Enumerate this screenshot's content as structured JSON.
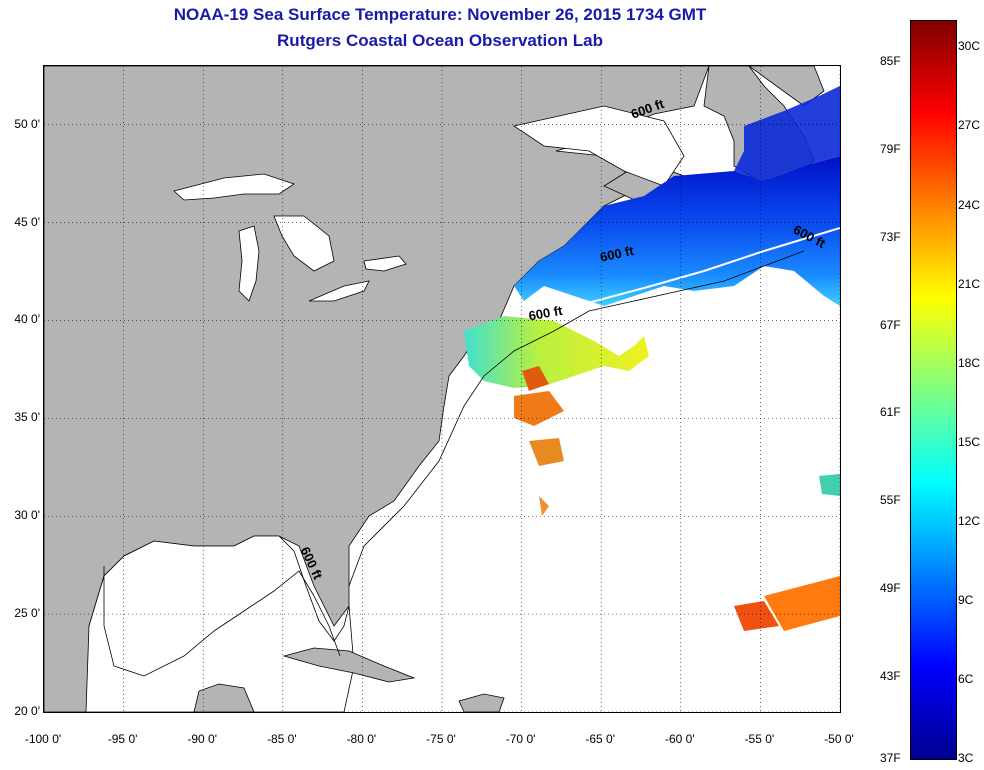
{
  "title_line1": "NOAA-19 Sea Surface Temperature:  November 26, 2015 1734 GMT",
  "title_line2": "Rutgers Coastal Ocean Observation Lab",
  "map": {
    "lon_range": [
      -100,
      -50
    ],
    "lat_range": [
      20,
      53
    ],
    "lon_ticks": [
      -100,
      -95,
      -90,
      -85,
      -80,
      -75,
      -70,
      -65,
      -60,
      -55,
      -50
    ],
    "lon_tick_labels": [
      "-100 0'",
      "-95 0'",
      "-90 0'",
      "-85 0'",
      "-80 0'",
      "-75 0'",
      "-70 0'",
      "-65 0'",
      "-60 0'",
      "-55 0'",
      "-50 0'"
    ],
    "lat_ticks": [
      20,
      25,
      30,
      35,
      40,
      45,
      50
    ],
    "lat_tick_labels": [
      "20 0'",
      "25 0'",
      "30 0'",
      "35 0'",
      "40 0'",
      "45 0'",
      "50 0'"
    ],
    "land_color": "#b4b4b4",
    "water_color": "#ffffff",
    "contour_label": "600 ft",
    "contour_labels": [
      {
        "text": "600 ft",
        "lon": -63,
        "lat": 50.3,
        "angle": -20
      },
      {
        "text": "600 ft",
        "lon": -53,
        "lat": 44.5,
        "angle": 28
      },
      {
        "text": "600 ft",
        "lon": -65,
        "lat": 43.0,
        "angle": -12
      },
      {
        "text": "600 ft",
        "lon": -69.5,
        "lat": 40.0,
        "angle": -10
      },
      {
        "text": "600 ft",
        "lon": -83.9,
        "lat": 28.3,
        "angle": 65
      }
    ]
  },
  "colorbar": {
    "colors": [
      "#00008f",
      "#0000ff",
      "#0080ff",
      "#00ffff",
      "#80ff80",
      "#ffff00",
      "#ff8000",
      "#ff0000",
      "#800000"
    ],
    "fahrenheit_labels": [
      {
        "text": "85F",
        "value": 85
      },
      {
        "text": "79F",
        "value": 79
      },
      {
        "text": "73F",
        "value": 73
      },
      {
        "text": "67F",
        "value": 67
      },
      {
        "text": "61F",
        "value": 61
      },
      {
        "text": "55F",
        "value": 55
      },
      {
        "text": "49F",
        "value": 49
      },
      {
        "text": "43F",
        "value": 43
      },
      {
        "text": "37F",
        "value": 37
      }
    ],
    "celsius_labels": [
      {
        "text": "30C",
        "value": 30
      },
      {
        "text": "27C",
        "value": 27
      },
      {
        "text": "24C",
        "value": 24
      },
      {
        "text": "21C",
        "value": 21
      },
      {
        "text": "18C",
        "value": 18
      },
      {
        "text": "15C",
        "value": 15
      },
      {
        "text": "12C",
        "value": 12
      },
      {
        "text": "9C",
        "value": 9
      },
      {
        "text": "6C",
        "value": 6
      },
      {
        "text": "3C",
        "value": 3
      }
    ],
    "range_c": [
      3,
      31
    ],
    "range_f": [
      37.4,
      87.8
    ]
  }
}
